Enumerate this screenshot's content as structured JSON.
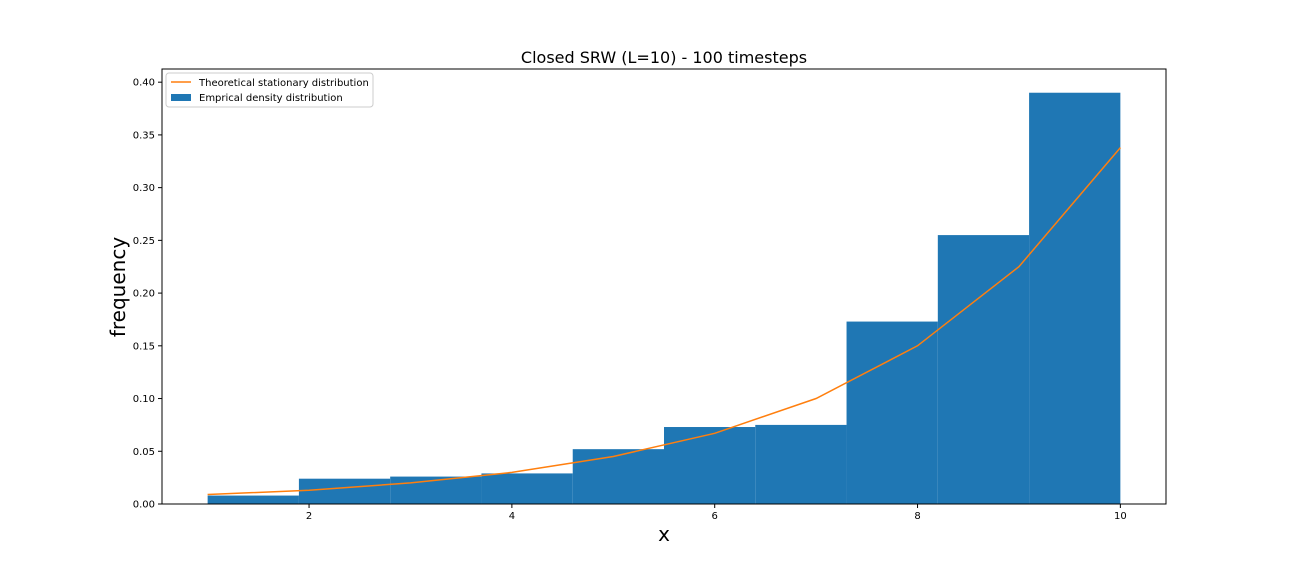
{
  "chart_data": {
    "type": "bar",
    "title": "Closed SRW (L=10) - 100 timesteps",
    "xlabel": "x",
    "ylabel": "frequency",
    "xlim": [
      0.55,
      10.45
    ],
    "ylim": [
      0,
      0.4125
    ],
    "x_ticks": [
      2,
      4,
      6,
      8,
      10
    ],
    "x_tick_labels": [
      "2",
      "4",
      "6",
      "8",
      "10"
    ],
    "y_ticks": [
      0,
      0.05,
      0.1,
      0.15,
      0.2,
      0.25,
      0.3,
      0.35,
      0.4
    ],
    "y_tick_labels": [
      "0.00",
      "0.05",
      "0.10",
      "0.15",
      "0.20",
      "0.25",
      "0.30",
      "0.35",
      "0.40"
    ],
    "grid": false,
    "legend_position": "upper left",
    "series": [
      {
        "name": "Emprical density distribution",
        "kind": "histogram",
        "color": "#1f77b4",
        "bin_edges": [
          1.0,
          1.9,
          2.8,
          3.7,
          4.6,
          5.5,
          6.4,
          7.3,
          8.2,
          9.1,
          10.0
        ],
        "values": [
          0.008,
          0.024,
          0.026,
          0.029,
          0.052,
          0.073,
          0.075,
          0.173,
          0.255,
          0.39
        ]
      },
      {
        "name": "Theoretical stationary distribution",
        "kind": "line",
        "color": "#ff7f0e",
        "x": [
          1,
          2,
          3,
          4,
          5,
          6,
          7,
          8,
          9,
          10
        ],
        "values": [
          0.009,
          0.013,
          0.02,
          0.03,
          0.045,
          0.067,
          0.1,
          0.15,
          0.225,
          0.338
        ]
      }
    ]
  }
}
